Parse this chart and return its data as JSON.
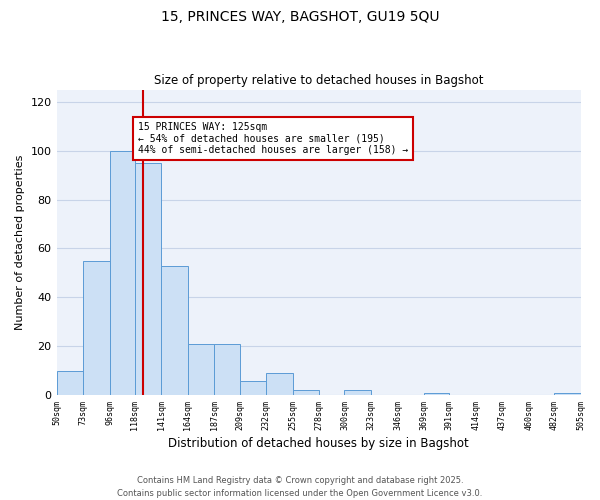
{
  "title": "15, PRINCES WAY, BAGSHOT, GU19 5QU",
  "subtitle": "Size of property relative to detached houses in Bagshot",
  "xlabel": "Distribution of detached houses by size in Bagshot",
  "ylabel": "Number of detached properties",
  "bar_edges": [
    50,
    73,
    96,
    118,
    141,
    164,
    187,
    209,
    232,
    255,
    278,
    300,
    323,
    346,
    369,
    391,
    414,
    437,
    460,
    482,
    505
  ],
  "bar_heights": [
    10,
    55,
    100,
    95,
    53,
    21,
    21,
    6,
    9,
    2,
    0,
    2,
    0,
    0,
    1,
    0,
    0,
    0,
    0,
    1
  ],
  "bar_color": "#cce0f5",
  "bar_edge_color": "#5b9bd5",
  "property_value": 125,
  "vline_color": "#cc0000",
  "annotation_text": "15 PRINCES WAY: 125sqm\n← 54% of detached houses are smaller (195)\n44% of semi-detached houses are larger (158) →",
  "annotation_box_color": "#cc0000",
  "ylim": [
    0,
    125
  ],
  "yticks": [
    0,
    20,
    40,
    60,
    80,
    100,
    120
  ],
  "grid_color": "#c8d4e8",
  "background_color": "#edf2fa",
  "footer_text": "Contains HM Land Registry data © Crown copyright and database right 2025.\nContains public sector information licensed under the Open Government Licence v3.0.",
  "tick_labels": [
    "50sqm",
    "73sqm",
    "96sqm",
    "118sqm",
    "141sqm",
    "164sqm",
    "187sqm",
    "209sqm",
    "232sqm",
    "255sqm",
    "278sqm",
    "300sqm",
    "323sqm",
    "346sqm",
    "369sqm",
    "391sqm",
    "414sqm",
    "437sqm",
    "460sqm",
    "482sqm",
    "505sqm"
  ]
}
